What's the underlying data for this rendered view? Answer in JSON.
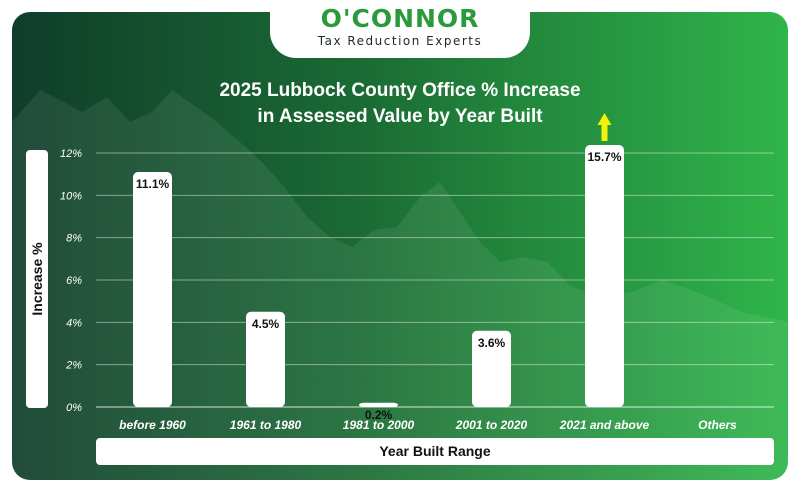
{
  "logo": {
    "name": "O'CONNOR",
    "tagline": "Tax Reduction Experts"
  },
  "colors": {
    "bar": "#ffffff",
    "arrow": "#f2f20a",
    "logo_green": "#2a9a3c",
    "background_dark": "#0f3d2a",
    "background_light": "#2fb54a"
  },
  "chart_data": {
    "type": "bar",
    "title": "2025 Lubbock County Office % Increase",
    "subtitle": "in Assessed Value by Year Built",
    "xlabel": "Year Built Range",
    "ylabel": "Increase %",
    "categories": [
      "before 1960",
      "1961 to 1980",
      "1981 to 2000",
      "2001 to 2020",
      "2021 and above",
      "Others"
    ],
    "values": [
      11.1,
      4.5,
      0.2,
      3.6,
      15.7,
      null
    ],
    "data_labels": [
      "11.1%",
      "4.5%",
      "0.2%",
      "3.6%",
      "15.7%",
      ""
    ],
    "yticks": [
      "0%",
      "2%",
      "4%",
      "6%",
      "8%",
      "10%",
      "12%"
    ],
    "ylim": [
      0,
      12
    ],
    "grid": true,
    "clipped_bar_arrow": "2021 and above"
  }
}
